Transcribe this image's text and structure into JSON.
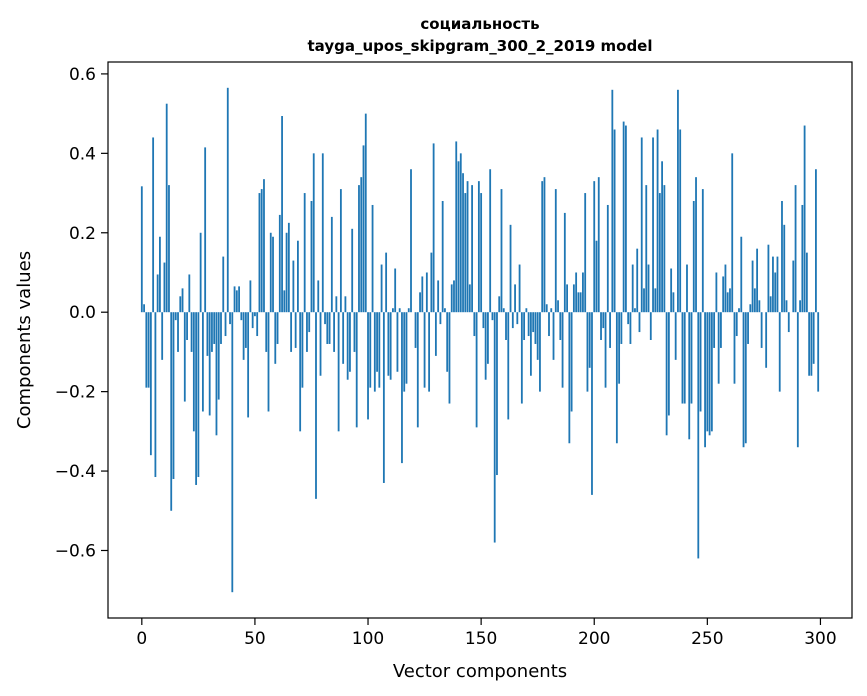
{
  "chart_data": {
    "type": "bar",
    "title_line1": "социальность",
    "title_line2": "tayga_upos_skipgram_300_2_2019 model",
    "xlabel": "Vector components",
    "ylabel": "Components values",
    "xlim": [
      -14.95,
      313.95
    ],
    "ylim": [
      -0.77,
      0.63
    ],
    "x_ticks": [
      0,
      50,
      100,
      150,
      200,
      250,
      300
    ],
    "x_tick_labels": [
      "0",
      "50",
      "100",
      "150",
      "200",
      "250",
      "300"
    ],
    "y_ticks": [
      -0.6,
      -0.4,
      -0.2,
      0.0,
      0.2,
      0.4,
      0.6
    ],
    "y_tick_labels": [
      "−0.6",
      "−0.4",
      "−0.2",
      "0.0",
      "0.2",
      "0.4",
      "0.6"
    ],
    "bar_color": "#1f77b4",
    "x": [
      0,
      1,
      2,
      3,
      4,
      5,
      6,
      7,
      8,
      9,
      10,
      11,
      12,
      13,
      14,
      15,
      16,
      17,
      18,
      19,
      20,
      21,
      22,
      23,
      24,
      25,
      26,
      27,
      28,
      29,
      30,
      31,
      32,
      33,
      34,
      35,
      36,
      37,
      38,
      39,
      40,
      41,
      42,
      43,
      44,
      45,
      46,
      47,
      48,
      49,
      50,
      51,
      52,
      53,
      54,
      55,
      56,
      57,
      58,
      59,
      60,
      61,
      62,
      63,
      64,
      65,
      66,
      67,
      68,
      69,
      70,
      71,
      72,
      73,
      74,
      75,
      76,
      77,
      78,
      79,
      80,
      81,
      82,
      83,
      84,
      85,
      86,
      87,
      88,
      89,
      90,
      91,
      92,
      93,
      94,
      95,
      96,
      97,
      98,
      99,
      100,
      101,
      102,
      103,
      104,
      105,
      106,
      107,
      108,
      109,
      110,
      111,
      112,
      113,
      114,
      115,
      116,
      117,
      118,
      119,
      120,
      121,
      122,
      123,
      124,
      125,
      126,
      127,
      128,
      129,
      130,
      131,
      132,
      133,
      134,
      135,
      136,
      137,
      138,
      139,
      140,
      141,
      142,
      143,
      144,
      145,
      146,
      147,
      148,
      149,
      150,
      151,
      152,
      153,
      154,
      155,
      156,
      157,
      158,
      159,
      160,
      161,
      162,
      163,
      164,
      165,
      166,
      167,
      168,
      169,
      170,
      171,
      172,
      173,
      174,
      175,
      176,
      177,
      178,
      179,
      180,
      181,
      182,
      183,
      184,
      185,
      186,
      187,
      188,
      189,
      190,
      191,
      192,
      193,
      194,
      195,
      196,
      197,
      198,
      199,
      200,
      201,
      202,
      203,
      204,
      205,
      206,
      207,
      208,
      209,
      210,
      211,
      212,
      213,
      214,
      215,
      216,
      217,
      218,
      219,
      220,
      221,
      222,
      223,
      224,
      225,
      226,
      227,
      228,
      229,
      230,
      231,
      232,
      233,
      234,
      235,
      236,
      237,
      238,
      239,
      240,
      241,
      242,
      243,
      244,
      245,
      246,
      247,
      248,
      249,
      250,
      251,
      252,
      253,
      254,
      255,
      256,
      257,
      258,
      259,
      260,
      261,
      262,
      263,
      264,
      265,
      266,
      267,
      268,
      269,
      270,
      271,
      272,
      273,
      274,
      275,
      276,
      277,
      278,
      279,
      280,
      281,
      282,
      283,
      284,
      285,
      286,
      287,
      288,
      289,
      290,
      291,
      292,
      293,
      294,
      295,
      296,
      297,
      298,
      299
    ],
    "values": [
      0.317,
      0.02,
      -0.19,
      -0.19,
      -0.36,
      0.44,
      -0.415,
      0.095,
      0.19,
      -0.12,
      0.125,
      0.525,
      0.32,
      -0.5,
      -0.42,
      -0.02,
      -0.1,
      0.04,
      0.06,
      -0.225,
      -0.07,
      0.095,
      -0.1,
      -0.3,
      -0.435,
      -0.415,
      0.2,
      -0.25,
      0.415,
      -0.11,
      -0.26,
      -0.1,
      -0.08,
      -0.31,
      -0.22,
      -0.08,
      0.14,
      -0.06,
      0.565,
      -0.03,
      -0.705,
      0.065,
      0.055,
      0.065,
      -0.02,
      -0.12,
      -0.09,
      -0.265,
      0.08,
      -0.04,
      -0.01,
      -0.06,
      0.3,
      0.31,
      0.335,
      -0.1,
      -0.25,
      0.2,
      0.19,
      -0.13,
      -0.08,
      0.245,
      0.494,
      0.055,
      0.2,
      0.225,
      -0.1,
      0.13,
      -0.09,
      0.18,
      -0.3,
      -0.19,
      0.3,
      -0.1,
      -0.05,
      0.28,
      0.4,
      -0.47,
      0.08,
      -0.16,
      0.4,
      -0.03,
      -0.08,
      -0.08,
      0.24,
      -0.1,
      0.04,
      -0.3,
      0.31,
      -0.13,
      0.04,
      -0.17,
      -0.15,
      0.21,
      -0.1,
      -0.29,
      0.32,
      0.34,
      0.42,
      0.5,
      -0.27,
      -0.19,
      0.27,
      -0.2,
      -0.15,
      -0.19,
      0.12,
      -0.43,
      0.15,
      -0.16,
      -0.17,
      0.01,
      0.11,
      -0.15,
      0.01,
      -0.38,
      -0.2,
      -0.18,
      0.01,
      0.36,
      0.0,
      -0.09,
      -0.29,
      0.05,
      0.09,
      -0.19,
      0.1,
      -0.2,
      0.15,
      0.425,
      -0.11,
      0.08,
      -0.03,
      0.28,
      0.01,
      -0.15,
      -0.23,
      0.07,
      0.08,
      0.43,
      0.38,
      0.4,
      0.35,
      0.3,
      0.33,
      0.07,
      0.32,
      -0.06,
      -0.29,
      0.33,
      0.3,
      -0.04,
      -0.17,
      -0.13,
      0.36,
      -0.02,
      -0.58,
      -0.41,
      0.04,
      0.31,
      0.01,
      -0.07,
      -0.27,
      0.22,
      -0.04,
      0.07,
      -0.03,
      0.12,
      -0.23,
      -0.07,
      0.01,
      -0.06,
      -0.16,
      -0.05,
      -0.08,
      -0.12,
      -0.2,
      0.33,
      0.34,
      0.02,
      -0.06,
      0.01,
      -0.12,
      0.31,
      0.03,
      -0.07,
      -0.19,
      0.25,
      0.07,
      -0.33,
      -0.25,
      0.07,
      0.1,
      0.05,
      0.05,
      0.1,
      0.3,
      -0.2,
      -0.14,
      -0.46,
      0.33,
      0.18,
      0.34,
      -0.07,
      -0.04,
      -0.19,
      0.27,
      -0.09,
      0.56,
      0.46,
      -0.33,
      -0.18,
      -0.08,
      0.48,
      0.47,
      -0.03,
      -0.08,
      0.12,
      0.01,
      0.16,
      -0.05,
      0.44,
      0.06,
      0.32,
      0.12,
      -0.07,
      0.44,
      0.06,
      0.46,
      0.3,
      0.38,
      0.32,
      -0.31,
      -0.26,
      0.11,
      0.05,
      -0.12,
      0.56,
      0.46,
      -0.23,
      -0.23,
      0.12,
      -0.32,
      -0.23,
      0.28,
      0.34,
      -0.62,
      -0.25,
      0.31,
      -0.34,
      -0.3,
      -0.31,
      -0.3,
      -0.09,
      0.1,
      -0.18,
      -0.09,
      0.09,
      0.12,
      0.05,
      0.06,
      0.4,
      -0.18,
      -0.06,
      0.01,
      0.19,
      -0.34,
      -0.33,
      -0.08,
      0.02,
      0.13,
      0.06,
      0.16,
      0.03,
      -0.09,
      0.0,
      -0.14,
      0.17,
      0.04,
      0.14,
      0.1,
      0.14,
      -0.2,
      0.28,
      0.22,
      0.03,
      -0.05,
      0.0,
      0.13,
      0.32,
      -0.34,
      0.03,
      0.27,
      0.47,
      0.15,
      -0.16,
      -0.16,
      -0.13,
      0.36,
      -0.2
    ]
  }
}
